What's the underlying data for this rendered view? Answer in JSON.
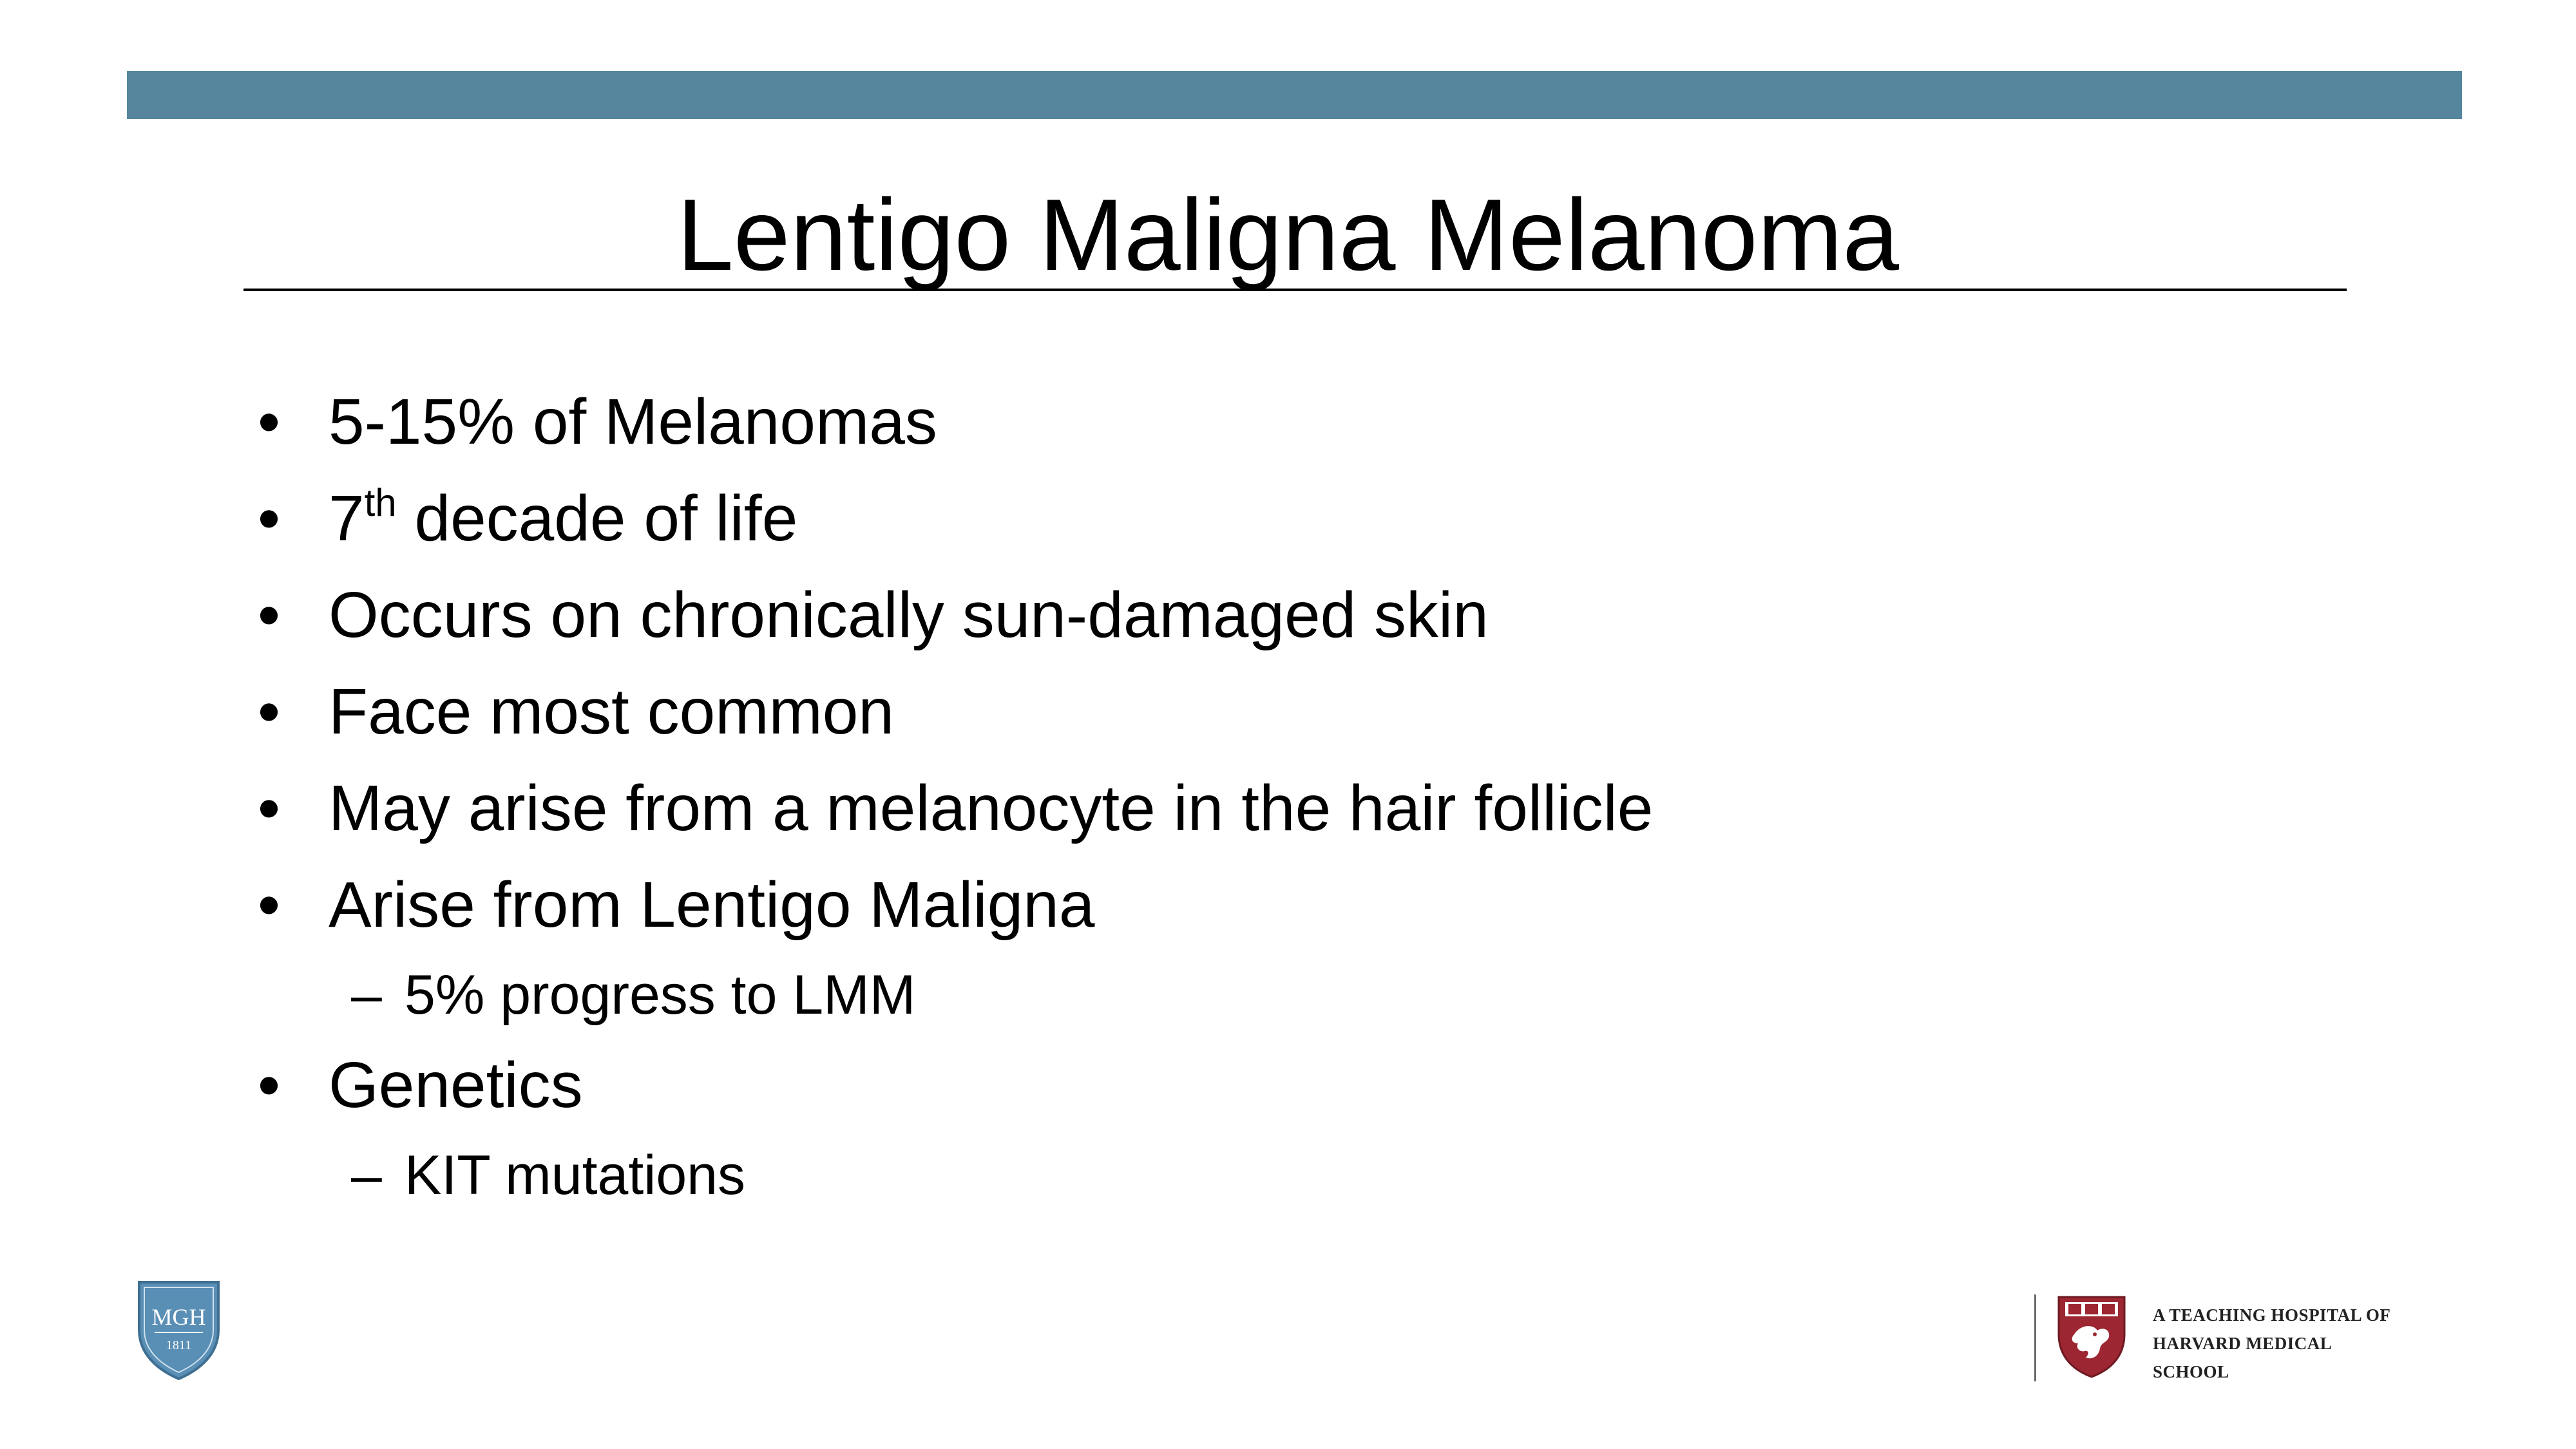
{
  "colors": {
    "top_bar": "#55869e",
    "mgh_shield": "#5a8fb5",
    "hms_shield": "#9c2631"
  },
  "slide": {
    "title": "Lentigo Maligna Melanoma",
    "bullets": [
      {
        "text": "5-15% of Melanomas"
      },
      {
        "text_prefix": "7",
        "text_sup": "th",
        "text_suffix": " decade of life"
      },
      {
        "text": "Occurs on chronically sun-damaged skin"
      },
      {
        "text": "Face most common"
      },
      {
        "text": "May arise from a melanocyte in the hair follicle"
      },
      {
        "text": "Arise from Lentigo Maligna",
        "sub": "5% progress to LMM"
      },
      {
        "text": "Genetics",
        "sub": "KIT mutations"
      }
    ],
    "bullet_char": "•",
    "sub_bullet_char": "–"
  },
  "footer": {
    "mgh_logo": {
      "text": "MGH",
      "year": "1811",
      "icon": "mgh-shield-icon"
    },
    "hms_logo": {
      "icon": "harvard-shield-icon",
      "text": "A TEACHING HOSPITAL OF HARVARD MEDICAL SCHOOL"
    },
    "hms_lines": [
      "A TEACHING HOSPITAL OF",
      "HARVARD MEDICAL",
      "SCHOOL"
    ]
  }
}
